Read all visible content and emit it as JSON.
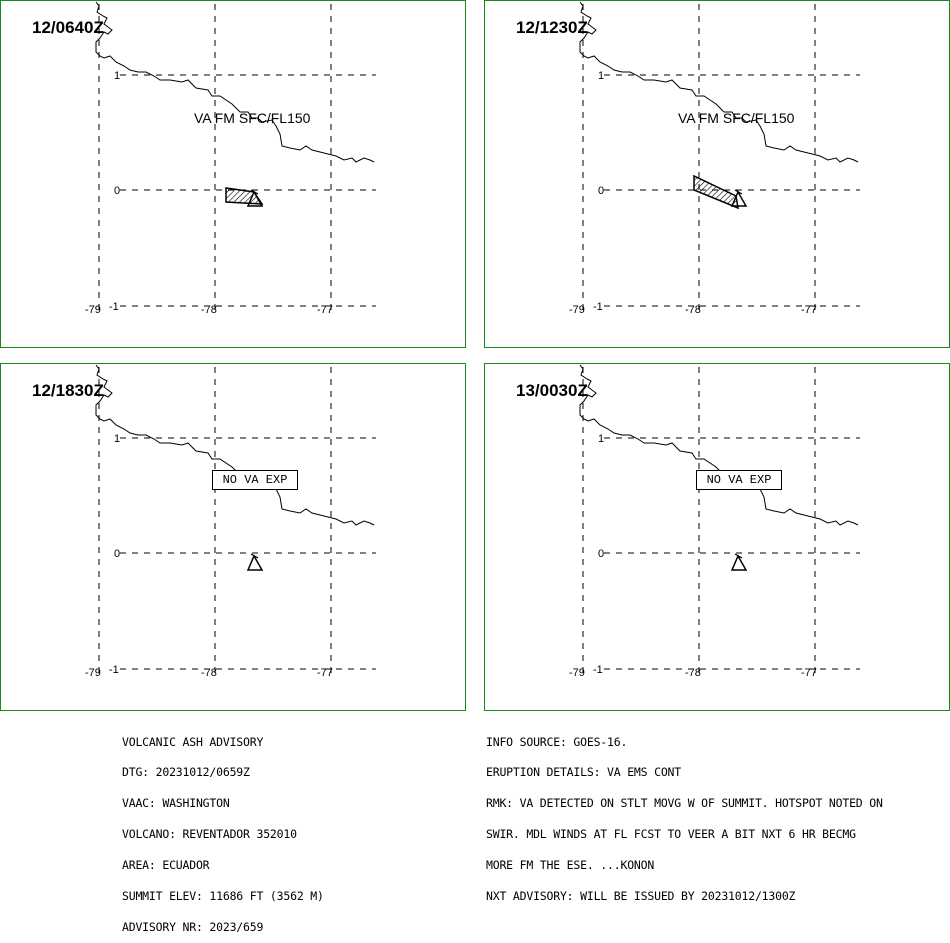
{
  "panels": [
    {
      "time": "12/0640Z",
      "label": "VA FM SFC/FL150",
      "no_va": null,
      "ash_shape": "small"
    },
    {
      "time": "12/1230Z",
      "label": "VA FM SFC/FL150",
      "no_va": null,
      "ash_shape": "large"
    },
    {
      "time": "12/1830Z",
      "label": null,
      "no_va": "NO VA EXP",
      "ash_shape": "none"
    },
    {
      "time": "13/0030Z",
      "label": null,
      "no_va": "NO VA EXP",
      "ash_shape": "none"
    }
  ],
  "grid": {
    "lat_labels": [
      "1",
      "0",
      "-1"
    ],
    "lon_labels": [
      "-79",
      "-78",
      "-77"
    ]
  },
  "advisory_left": [
    "VOLCANIC ASH ADVISORY",
    "DTG: 20231012/0659Z",
    "VAAC: WASHINGTON",
    "VOLCANO: REVENTADOR 352010",
    "AREA: ECUADOR",
    "SUMMIT ELEV: 11686 FT (3562 M)",
    "ADVISORY NR: 2023/659"
  ],
  "advisory_right": [
    "INFO SOURCE: GOES-16.",
    "ERUPTION DETAILS: VA EMS CONT",
    "RMK: VA DETECTED ON STLT MOVG W OF SUMMIT. HOTSPOT NOTED ON",
    "SWIR. MDL WINDS AT FL FCST TO VEER A BIT NXT 6 HR BECMG",
    "MORE FM THE ESE. ...KONON",
    "NXT ADVISORY: WILL BE ISSUED BY 20231012/1300Z"
  ],
  "colors": {
    "frame": "#1a8a1a",
    "ink": "#000000"
  }
}
